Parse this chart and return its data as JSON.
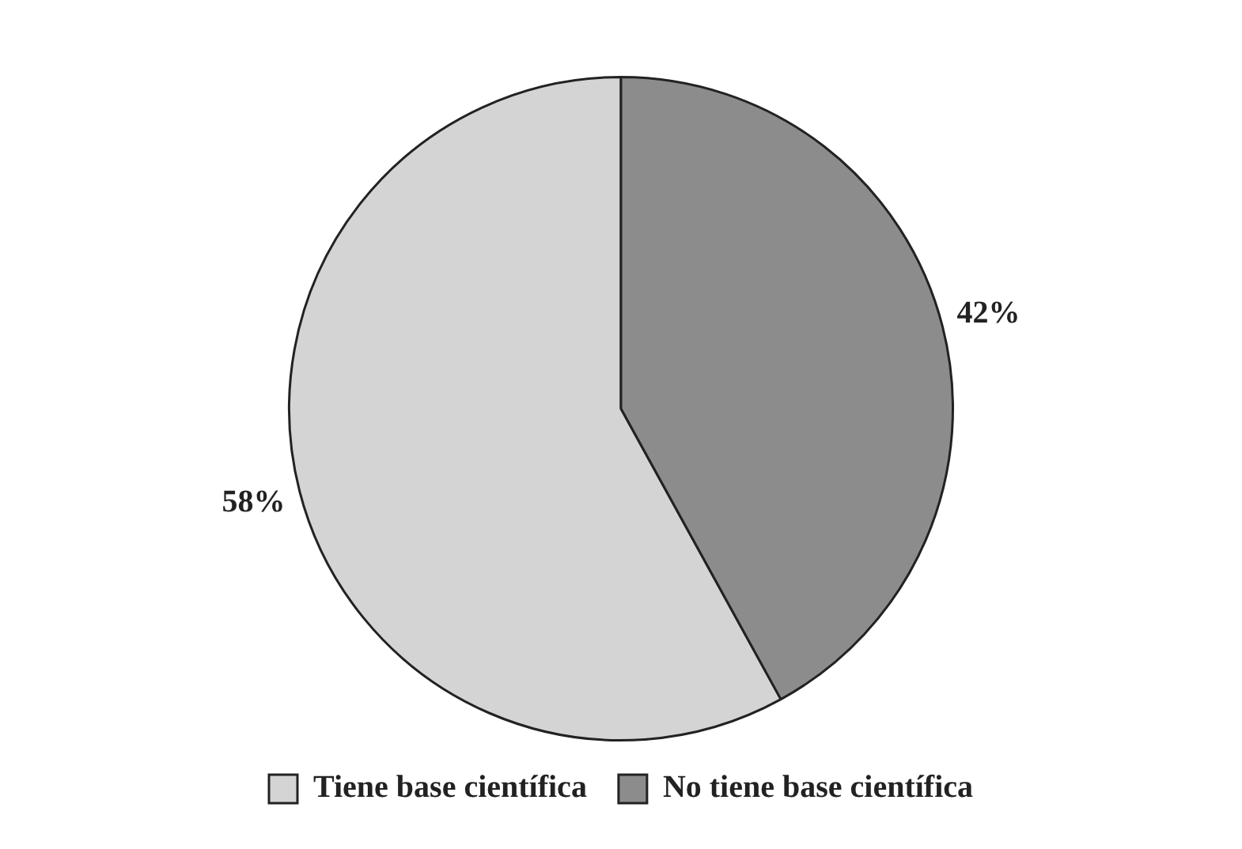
{
  "chart_data": {
    "type": "pie",
    "categories": [
      "Tiene base científica",
      "No tiene base científica"
    ],
    "values": [
      58,
      42
    ],
    "colors": [
      "#d4d4d4",
      "#8c8c8c"
    ],
    "value_labels": [
      "58%",
      "42%"
    ],
    "legend": "bottom"
  }
}
